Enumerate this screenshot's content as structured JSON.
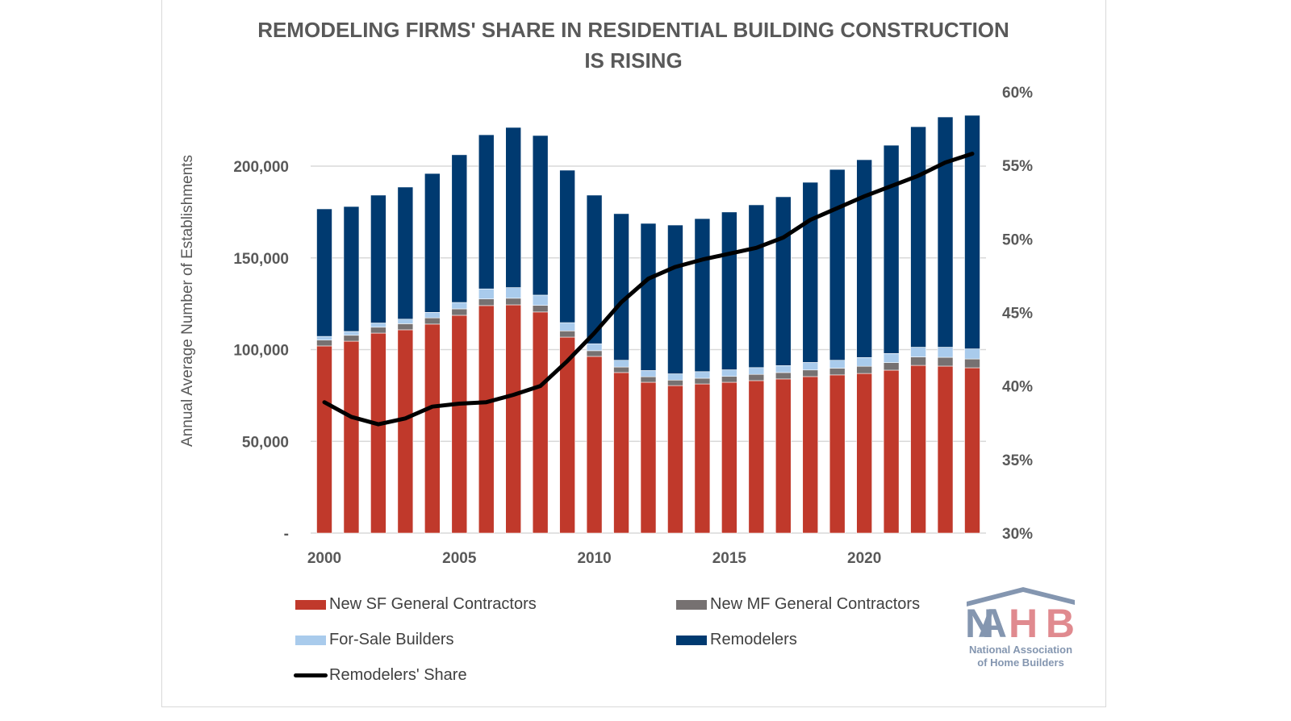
{
  "chart_data": {
    "type": "bar",
    "stacked": true,
    "title": "REMODELING FIRMS' SHARE IN RESIDENTIAL BUILDING CONSTRUCTION IS RISING",
    "title_lines": [
      "REMODELING FIRMS' SHARE IN RESIDENTIAL BUILDING CONSTRUCTION",
      "IS RISING"
    ],
    "ylabel": "Annual Average Number of Establishments",
    "ylim": [
      0,
      240000
    ],
    "y2lim": [
      0.3,
      0.6
    ],
    "yticks": [
      "-",
      "50,000",
      "100,000",
      "150,000",
      "200,000"
    ],
    "ytick_values": [
      0,
      50000,
      100000,
      150000,
      200000
    ],
    "y2ticks": [
      "30%",
      "35%",
      "40%",
      "45%",
      "50%",
      "55%",
      "60%"
    ],
    "y2tick_values": [
      0.3,
      0.35,
      0.4,
      0.45,
      0.5,
      0.55,
      0.6
    ],
    "xticks": [
      "2000",
      "2005",
      "2010",
      "2015",
      "2020"
    ],
    "grid": true,
    "legend_position": "bottom",
    "categories": [
      2000,
      2001,
      2002,
      2003,
      2004,
      2005,
      2006,
      2007,
      2008,
      2009,
      2010,
      2011,
      2012,
      2013,
      2014,
      2015,
      2016,
      2017,
      2018,
      2019,
      2020,
      2021,
      2022,
      2023,
      2024
    ],
    "series": [
      {
        "name": "New SF General Contractors",
        "color": "#c0392b",
        "values": [
          102000,
          104600,
          109000,
          110800,
          113900,
          118700,
          124000,
          124400,
          120500,
          106800,
          96300,
          87500,
          82200,
          80400,
          81300,
          82200,
          83100,
          84000,
          85300,
          86200,
          87000,
          88800,
          91400,
          91000,
          90100
        ]
      },
      {
        "name": "New MF General Contractors",
        "color": "#767171",
        "values": [
          3200,
          3200,
          3200,
          3300,
          3400,
          3500,
          3600,
          3600,
          3600,
          3400,
          3100,
          3000,
          3000,
          3000,
          3100,
          3200,
          3400,
          3500,
          3600,
          3700,
          3900,
          4100,
          4600,
          4800,
          4800
        ]
      },
      {
        "name": "For-Sale Builders",
        "color": "#a9cbec",
        "values": [
          2000,
          2100,
          2300,
          2500,
          3000,
          3500,
          5500,
          5800,
          5600,
          4500,
          3800,
          3700,
          3400,
          3400,
          3600,
          3600,
          3700,
          3800,
          4100,
          4300,
          4800,
          5000,
          5300,
          5500,
          5500
        ]
      },
      {
        "name": "Remodelers",
        "color": "#003a70",
        "values": [
          69500,
          68100,
          69700,
          72000,
          75700,
          80500,
          84000,
          87300,
          87000,
          83100,
          81000,
          79900,
          80200,
          81100,
          83400,
          86000,
          88700,
          92000,
          98200,
          104000,
          107800,
          113500,
          120200,
          125500,
          127300
        ]
      },
      {
        "name": "Remodelers' Share",
        "type": "line",
        "axis": "right",
        "color": "#000000",
        "values": [
          0.389,
          0.379,
          0.374,
          0.378,
          0.386,
          0.388,
          0.389,
          0.394,
          0.4,
          0.417,
          0.436,
          0.457,
          0.473,
          0.481,
          0.486,
          0.49,
          0.494,
          0.501,
          0.513,
          0.521,
          0.529,
          0.536,
          0.543,
          0.552,
          0.558
        ]
      }
    ]
  },
  "logo": {
    "text": "NAHB",
    "subtitle_lines": [
      "National Association",
      "of Home Builders"
    ]
  }
}
